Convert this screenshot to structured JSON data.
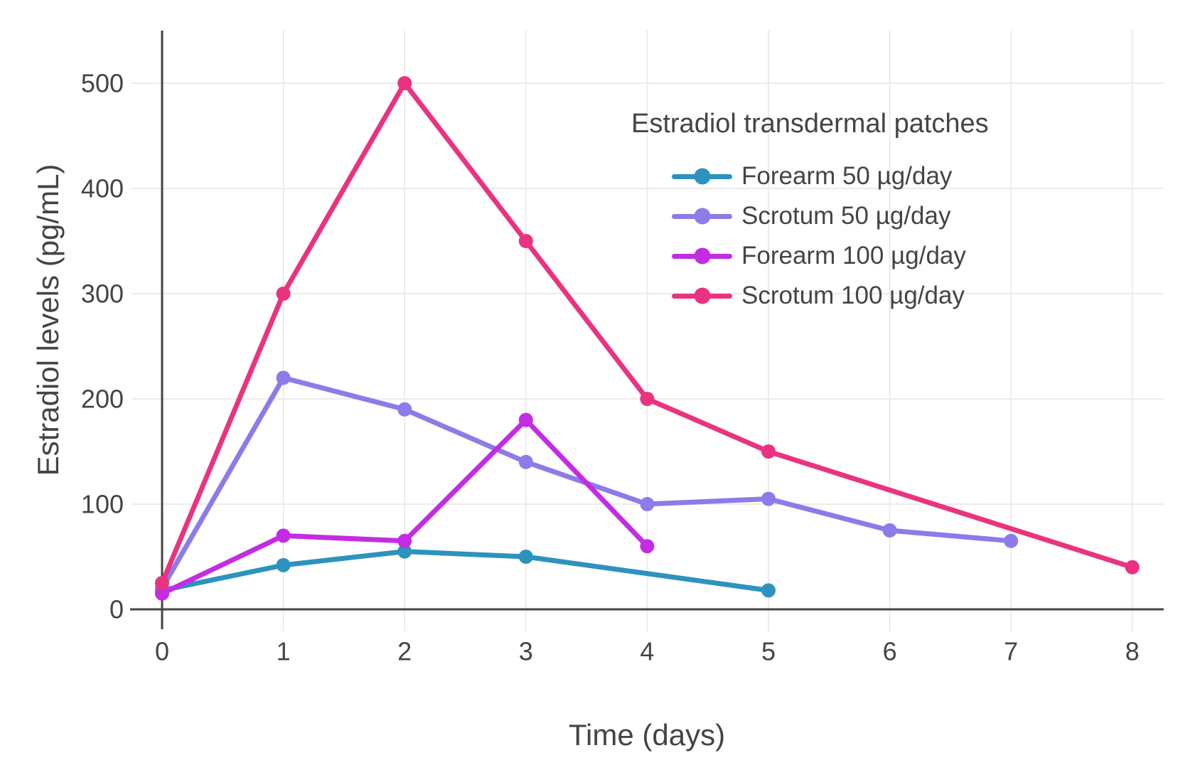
{
  "chart_data": {
    "type": "line",
    "title": "",
    "xlabel": "Time (days)",
    "ylabel": "Estradiol levels (pg/mL)",
    "legend_title": "Estradiol transdermal patches",
    "legend_position": "inside upper right",
    "grid": true,
    "x_ticks": [
      0,
      1,
      2,
      3,
      4,
      5,
      6,
      7,
      8
    ],
    "y_ticks": [
      0,
      100,
      200,
      300,
      400,
      500
    ],
    "xlim": [
      0,
      8.25
    ],
    "ylim": [
      0,
      550
    ],
    "colors": {
      "grid": "#ebebeb",
      "axis": "#444444",
      "text": "#444444",
      "background": "#ffffff"
    },
    "series": [
      {
        "name": "Forearm 50 µg/day",
        "color": "#2C93BE",
        "x": [
          0,
          1,
          2,
          3,
          5
        ],
        "y": [
          18,
          42,
          55,
          50,
          18
        ]
      },
      {
        "name": "Scrotum 50 µg/day",
        "color": "#8C7BE8",
        "x": [
          0,
          1,
          2,
          3,
          4,
          5,
          6,
          7
        ],
        "y": [
          20,
          220,
          190,
          140,
          100,
          105,
          75,
          65
        ]
      },
      {
        "name": "Forearm 100 µg/day",
        "color": "#C32CE3",
        "x": [
          0,
          1,
          2,
          3,
          4
        ],
        "y": [
          15,
          70,
          65,
          180,
          60
        ]
      },
      {
        "name": "Scrotum 100 µg/day",
        "color": "#EA3380",
        "x": [
          0,
          1,
          2,
          3,
          4,
          5,
          8
        ],
        "y": [
          25,
          300,
          500,
          350,
          200,
          150,
          40
        ]
      }
    ]
  }
}
